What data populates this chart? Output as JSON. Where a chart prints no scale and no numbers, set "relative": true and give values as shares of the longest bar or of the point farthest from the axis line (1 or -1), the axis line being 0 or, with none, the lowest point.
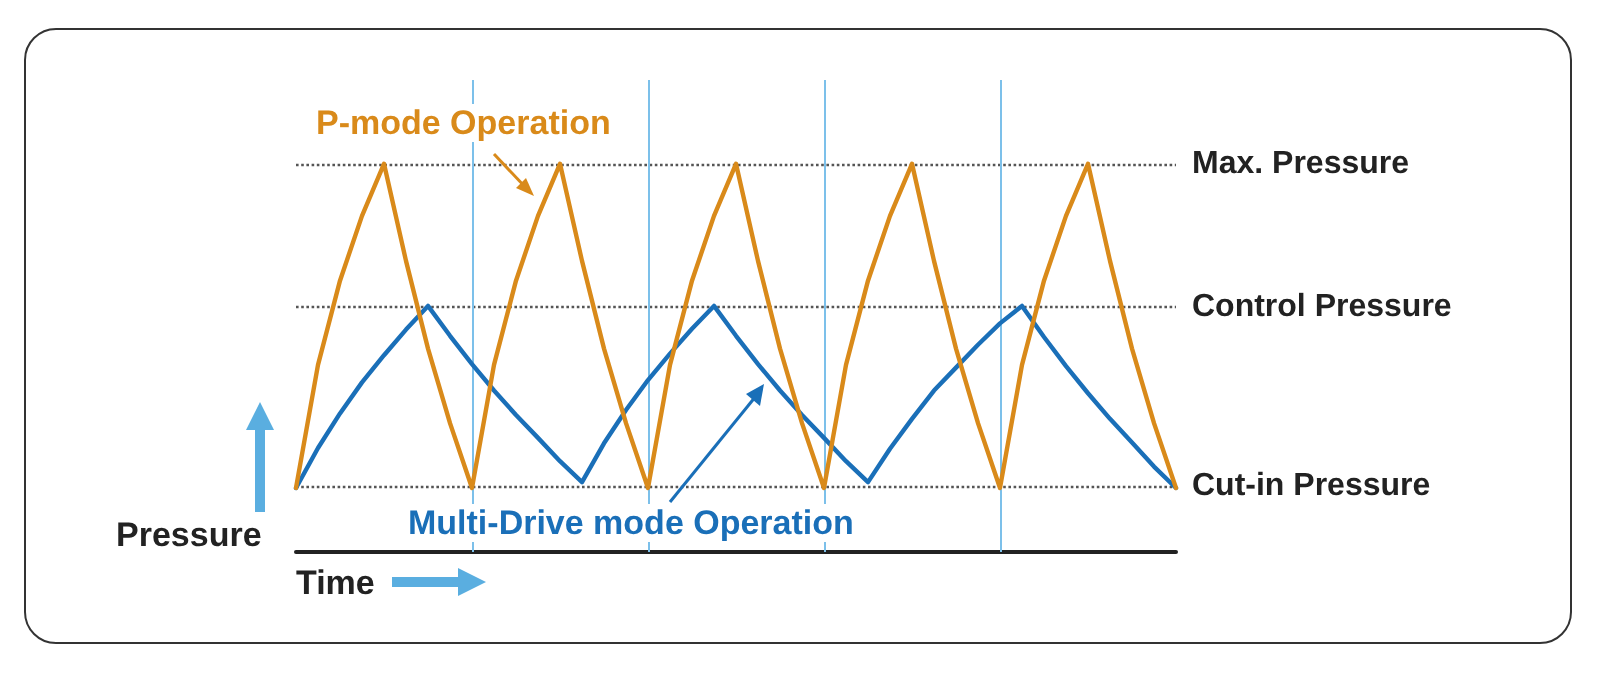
{
  "chart_data": {
    "type": "line",
    "relative": true,
    "xlabel": "Time",
    "ylabel": "Pressure",
    "categories": [
      null,
      null,
      null,
      null,
      null,
      null,
      null,
      null,
      null,
      null,
      null,
      null,
      null,
      null,
      null,
      null,
      null,
      null,
      null,
      null,
      null,
      null,
      null,
      null,
      null,
      null,
      null,
      null,
      null,
      null,
      null,
      null,
      null,
      null,
      null,
      null,
      null,
      null,
      null,
      null,
      null
    ],
    "series": [
      {
        "name": "P-mode Operation",
        "color": "#d98a1a",
        "values": [
          0.165,
          0.482,
          0.699,
          0.866,
          1.0,
          0.75,
          0.524,
          0.332,
          0.165,
          0.482,
          0.699,
          0.866,
          1.0,
          0.75,
          0.524,
          0.332,
          0.165,
          0.482,
          0.699,
          0.866,
          1.0,
          0.75,
          0.524,
          0.332,
          0.165,
          0.482,
          0.699,
          0.866,
          1.0,
          0.75,
          0.524,
          0.332,
          0.165,
          0.482,
          0.699,
          0.866,
          1.0,
          0.75,
          0.524,
          0.332,
          0.165
        ]
      },
      {
        "name": "Multi-Drive mode Operation",
        "color": "#1a6fb8",
        "values": [
          0.165,
          0.268,
          0.357,
          0.437,
          0.507,
          0.573,
          0.634,
          0.557,
          0.484,
          0.416,
          0.353,
          0.294,
          0.234,
          0.18,
          0.28,
          0.366,
          0.443,
          0.511,
          0.575,
          0.634,
          0.557,
          0.484,
          0.416,
          0.353,
          0.294,
          0.234,
          0.18,
          0.266,
          0.343,
          0.416,
          0.475,
          0.534,
          0.589,
          0.634,
          0.554,
          0.479,
          0.409,
          0.343,
          0.282,
          0.22,
          0.165
        ]
      }
    ],
    "ref_lines": [
      {
        "axis": "y",
        "value": 1.0,
        "label": "Max. Pressure",
        "color": "#555555",
        "line_style": "dotted"
      },
      {
        "axis": "y",
        "value": 0.634,
        "label": "Control Pressure",
        "color": "#555555",
        "line_style": "dotted"
      },
      {
        "axis": "y",
        "value": 0.165,
        "label": "Cut-in Pressure",
        "color": "#555555",
        "line_style": "dotted"
      }
    ],
    "marker": "none",
    "line_style": "solid",
    "grid": "x",
    "legend": false
  }
}
